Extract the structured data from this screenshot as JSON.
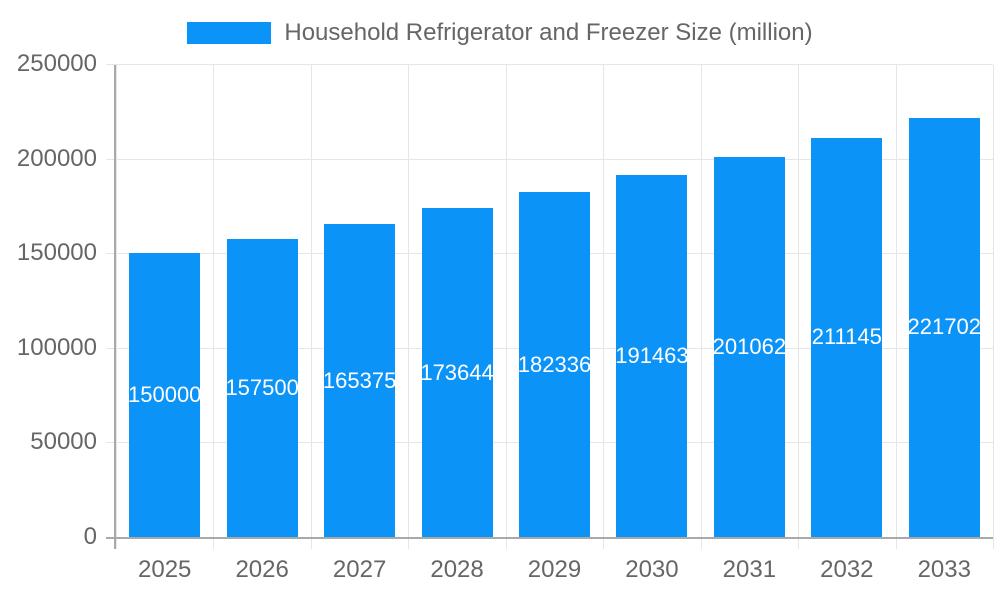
{
  "legend": {
    "series_label": "Household Refrigerator and Freezer Size (million)"
  },
  "chart_data": {
    "type": "bar",
    "title": "Household Refrigerator and Freezer Size (million)",
    "categories": [
      "2025",
      "2026",
      "2027",
      "2028",
      "2029",
      "2030",
      "2031",
      "2032",
      "2033"
    ],
    "values": [
      150000,
      157500,
      165375,
      173644,
      182336,
      191463,
      201062,
      211145,
      221702
    ],
    "bar_labels": [
      "150000",
      "157500",
      "165375",
      "173644",
      "182336",
      "191463",
      "201062",
      "211145",
      "221702"
    ],
    "xlabel": "",
    "ylabel": "",
    "ylim": [
      0,
      250000
    ],
    "yticks": [
      0,
      50000,
      100000,
      150000,
      200000,
      250000
    ],
    "ytick_labels": [
      "0",
      "50000",
      "100000",
      "150000",
      "200000",
      "250000"
    ],
    "grid": true,
    "legend_position": "top"
  },
  "colors": {
    "bar": "#0b93f8",
    "grid": "#e6e6e6",
    "axis": "#a9a9a9",
    "tick_text": "#666666",
    "bar_label_text": "#ffffff",
    "background": "#ffffff"
  }
}
